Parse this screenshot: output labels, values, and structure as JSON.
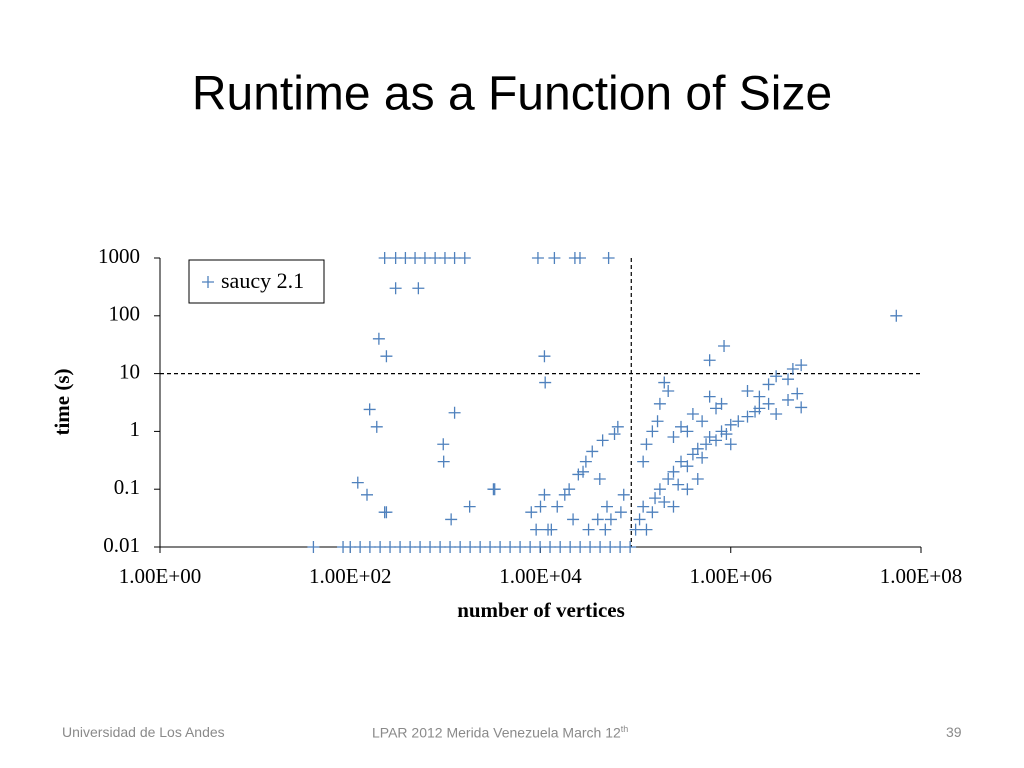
{
  "title": "Runtime as a Function of Size",
  "chart_data": {
    "type": "scatter",
    "xlabel": "number of vertices",
    "ylabel": "time (s)",
    "xscale": "log",
    "yscale": "log",
    "xlim": [
      1,
      100000000
    ],
    "ylim": [
      0.01,
      1000
    ],
    "xticks": [
      {
        "value": 1,
        "label": "1.00E+00"
      },
      {
        "value": 100,
        "label": "1.00E+02"
      },
      {
        "value": 10000,
        "label": "1.00E+04"
      },
      {
        "value": 1000000,
        "label": "1.00E+06"
      },
      {
        "value": 100000000,
        "label": "1.00E+08"
      }
    ],
    "yticks": [
      0.01,
      0.1,
      1,
      10,
      100,
      1000
    ],
    "grid": false,
    "legend": "upper left",
    "reference_lines": {
      "x": [
        90000
      ],
      "y": [
        10
      ]
    },
    "series": [
      {
        "name": "saucy 2.1",
        "color": "#4f81bd",
        "x": [
          230,
          300,
          380,
          480,
          610,
          780,
          990,
          1250,
          1600,
          9400,
          14000,
          23000,
          26000,
          52000,
          300,
          520,
          200,
          240,
          160,
          190,
          120,
          150,
          230,
          240,
          950,
          960,
          1250,
          1150,
          1800,
          3200,
          3300,
          11000,
          11200,
          41,
          84,
          100,
          127,
          161,
          206,
          262,
          334,
          426,
          542,
          690,
          880,
          1120,
          1430,
          1820,
          2320,
          2950,
          3760,
          4790,
          6100,
          7780,
          9900,
          12600,
          16100,
          20500,
          26100,
          33200,
          42300,
          54000,
          68700,
          87500,
          12000,
          15000,
          18000,
          20000,
          22000,
          25000,
          28000,
          30000,
          35000,
          40000,
          45000,
          50000,
          55000,
          60000,
          65000,
          70000,
          75000,
          10000,
          11000,
          13000,
          9000,
          8000,
          32000,
          42000,
          48000,
          100000,
          110000,
          120000,
          130000,
          150000,
          160000,
          180000,
          200000,
          220000,
          250000,
          280000,
          300000,
          350000,
          400000,
          450000,
          500000,
          550000,
          600000,
          700000,
          800000,
          900000,
          1000000,
          1200000,
          1500000,
          1800000,
          2000000,
          2500000,
          3000000,
          4000000,
          5000000,
          5500000,
          120000,
          130000,
          150000,
          170000,
          180000,
          200000,
          220000,
          250000,
          300000,
          350000,
          400000,
          500000,
          600000,
          700000,
          800000,
          1500000,
          2000000,
          2500000,
          3000000,
          4000000,
          4500000,
          5500000,
          1000000,
          350000,
          250000,
          450000,
          600000,
          850000,
          55000000
        ],
        "values": [
          1000,
          1000,
          1000,
          1000,
          1000,
          1000,
          1000,
          1000,
          1000,
          1000,
          1000,
          1000,
          1000,
          1000,
          300,
          300,
          40,
          20,
          2.4,
          1.2,
          0.13,
          0.08,
          0.04,
          0.04,
          0.6,
          0.3,
          2.1,
          0.03,
          0.05,
          0.1,
          0.1,
          20,
          7,
          0.01,
          0.01,
          0.01,
          0.01,
          0.01,
          0.01,
          0.01,
          0.01,
          0.01,
          0.01,
          0.01,
          0.01,
          0.01,
          0.01,
          0.01,
          0.01,
          0.01,
          0.01,
          0.01,
          0.01,
          0.01,
          0.01,
          0.01,
          0.01,
          0.01,
          0.01,
          0.01,
          0.01,
          0.01,
          0.01,
          0.01,
          0.02,
          0.05,
          0.08,
          0.1,
          0.03,
          0.18,
          0.2,
          0.3,
          0.45,
          0.03,
          0.7,
          0.05,
          0.03,
          0.9,
          1.2,
          0.04,
          0.08,
          0.05,
          0.08,
          0.02,
          0.02,
          0.04,
          0.02,
          0.15,
          0.02,
          0.02,
          0.03,
          0.05,
          0.02,
          0.04,
          0.07,
          0.1,
          0.06,
          0.15,
          0.2,
          0.12,
          0.3,
          0.25,
          0.4,
          0.5,
          0.35,
          0.6,
          0.8,
          0.7,
          1,
          0.9,
          1.3,
          1.5,
          1.8,
          2.2,
          2.5,
          3,
          2,
          3.5,
          4.5,
          2.6,
          0.3,
          0.6,
          1,
          1.5,
          3,
          7,
          5,
          0.8,
          1.2,
          1,
          2,
          1.5,
          4,
          2.5,
          3,
          5,
          4,
          6.5,
          9,
          8,
          12,
          14,
          0.6,
          0.1,
          0.05,
          0.15,
          17,
          30,
          100
        ]
      }
    ]
  },
  "footer": {
    "left": "Universidad de Los Andes",
    "center": "LPAR 2012 Merida Venezuela March 12",
    "center_sup": "th",
    "page": "39"
  }
}
